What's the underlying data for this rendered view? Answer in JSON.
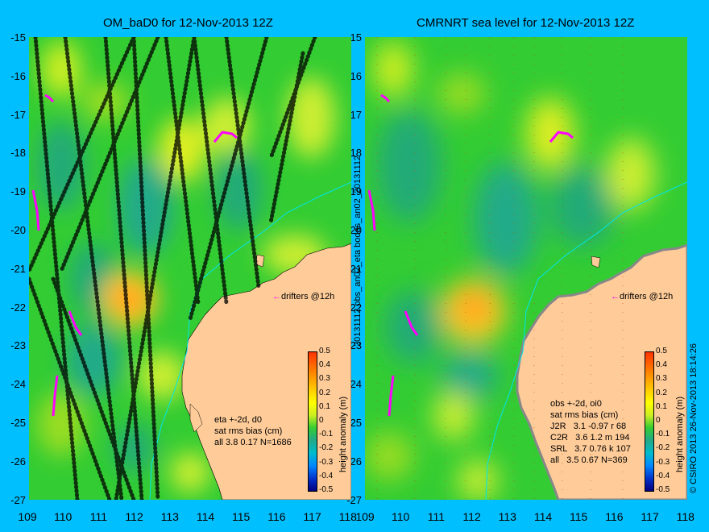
{
  "left": {
    "title": "OM_baD0 for 12-Nov-2013 12Z",
    "stats": [
      "eta +-2d, d0",
      "sat rms bias (cm)",
      "all 3.8 0.17 N=1686"
    ]
  },
  "right": {
    "title": "CMRNRT sea level  for 12-Nov-2013 12Z",
    "stats": [
      "obs +-2d, oi0",
      "sat rms bias (cm)",
      "J2R   3.1 -0.97 r 68",
      "C2R   3.6 1.2 m 194",
      "SRL   3.7 0.76 k 107",
      "all   3.5 0.67 N=369"
    ]
  },
  "middle_label": "20131112.obs_an02_eta        bodas_an02_20131112",
  "footer": "© CSIRO 2013   26-Nov-2013 18:14:26",
  "drifters_label": "drifters @12h",
  "colorbar": {
    "ticks": [
      "0.5",
      "0.4",
      "0.3",
      "0.2",
      "0.1",
      "0",
      "-0.1",
      "-0.2",
      "-0.3",
      "-0.4",
      "-0.5"
    ],
    "label": "height anomaly (m)"
  },
  "axes": {
    "y_ticks": [
      "-15",
      "-16",
      "-17",
      "-18",
      "-19",
      "-20",
      "-21",
      "-22",
      "-23",
      "-24",
      "-25",
      "-26",
      "-27"
    ],
    "x_ticks": [
      "109",
      "110",
      "111",
      "112",
      "113",
      "114",
      "115",
      "116",
      "117",
      "118"
    ]
  },
  "colors": {
    "background": "#00bfff",
    "land": "#ffcc99",
    "ocean": "#33cc33"
  }
}
